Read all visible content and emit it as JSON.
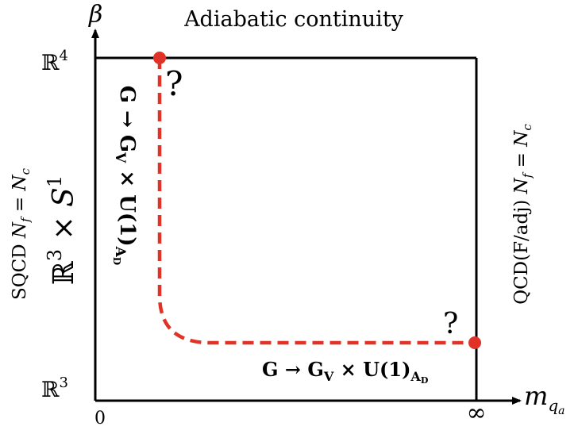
{
  "title": "Adiabatic continuity",
  "axes": {
    "y_symbol": "β",
    "x_symbol": "m",
    "x_subscript": "q",
    "x_subsubscript": "a",
    "y_top_label_base": "ℝ",
    "y_top_label_exp": "4",
    "y_bottom_label_base": "ℝ",
    "y_bottom_label_exp": "3",
    "x_left_label": "0",
    "x_right_label": "∞"
  },
  "left_side": {
    "theory": "SQCD",
    "condition": {
      "lhs": "N",
      "lhs_sub": "f",
      "eq": " = ",
      "rhs": "N",
      "rhs_sub": "c"
    },
    "manifold": {
      "r": "ℝ",
      "r_exp": "3",
      "times": " × ",
      "s": "S",
      "s_exp": "1"
    }
  },
  "right_side": {
    "theory": "QCD(F/adj)",
    "condition": {
      "lhs": "N",
      "lhs_sub": "f",
      "eq": " = ",
      "rhs": "N",
      "rhs_sub": "c"
    }
  },
  "vertical_breaking": {
    "g": "G",
    "arrow": " → ",
    "gv": "G",
    "gv_sub": "V",
    "times": " × ",
    "u": "U(1)",
    "u_sub": "A",
    "u_subsub": "D"
  },
  "horizontal_breaking": {
    "g": "G",
    "arrow": " → ",
    "gv": "G",
    "gv_sub": "V",
    "times": " × ",
    "u": "U(1)",
    "u_sub": "A",
    "u_subsub": "D"
  },
  "question_marks": {
    "top": "?",
    "right": "?"
  },
  "colors": {
    "path": "#e03226",
    "axis": "#000000"
  }
}
